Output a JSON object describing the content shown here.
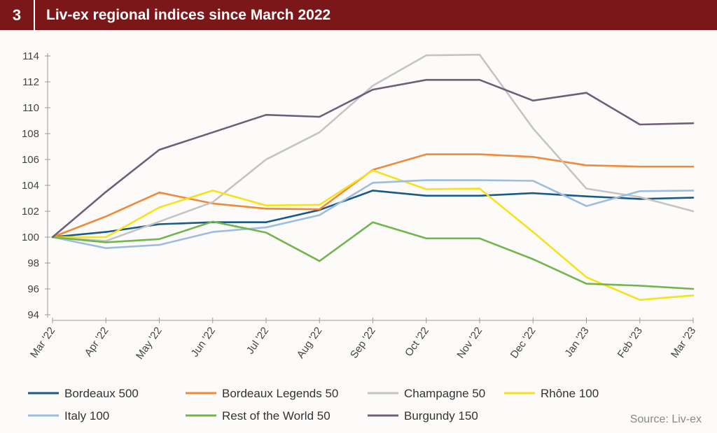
{
  "header": {
    "number": "3",
    "title": "Liv-ex regional indices since March 2022"
  },
  "source": "Source: Liv-ex",
  "chart_data": {
    "type": "line",
    "categories": [
      "Mar '22",
      "Apr '22",
      "May '22",
      "Jun '22",
      "Jul '22",
      "Aug '22",
      "Sep '22",
      "Oct '22",
      "Nov '22",
      "Dec '22",
      "Jan '23",
      "Feb '23",
      "Mar '23"
    ],
    "ylim": [
      94,
      114
    ],
    "yticks": [
      94,
      96,
      98,
      100,
      102,
      104,
      106,
      108,
      110,
      112,
      114
    ],
    "grid": false,
    "legend_position": "bottom",
    "series": [
      {
        "name": "Bordeaux 500",
        "color": "#1a5a87",
        "values": [
          100,
          100.4,
          101.0,
          101.15,
          101.15,
          102.1,
          103.6,
          103.2,
          103.2,
          103.4,
          103.15,
          102.95,
          103.05
        ]
      },
      {
        "name": "Bordeaux Legends 50",
        "color": "#ee8a3a",
        "values": [
          100,
          101.6,
          103.45,
          102.6,
          102.2,
          102.15,
          105.2,
          106.4,
          106.4,
          106.2,
          105.55,
          105.45,
          105.45
        ]
      },
      {
        "name": "Champagne 50",
        "color": "#c4c4c4",
        "values": [
          100,
          99.7,
          101.2,
          102.7,
          106.0,
          108.1,
          111.7,
          114.05,
          114.1,
          108.4,
          103.75,
          103.1,
          102.0
        ]
      },
      {
        "name": "Rhône 100",
        "color": "#f7e11a",
        "values": [
          100,
          100.0,
          102.3,
          103.6,
          102.45,
          102.5,
          105.15,
          103.7,
          103.75,
          100.4,
          96.9,
          95.15,
          95.5
        ]
      },
      {
        "name": "Italy 100",
        "color": "#9dbde0",
        "values": [
          100,
          99.15,
          99.4,
          100.4,
          100.75,
          101.7,
          104.2,
          104.4,
          104.4,
          104.35,
          102.4,
          103.55,
          103.6
        ]
      },
      {
        "name": "Rest of the World 50",
        "color": "#72b54e",
        "values": [
          100,
          99.6,
          99.85,
          101.2,
          100.35,
          98.15,
          101.15,
          99.9,
          99.9,
          98.3,
          96.4,
          96.25,
          96.0
        ]
      },
      {
        "name": "Burgundy 150",
        "color": "#6e5f78",
        "values": [
          100,
          103.5,
          106.75,
          108.1,
          109.45,
          109.3,
          111.4,
          112.15,
          112.15,
          110.55,
          111.15,
          108.7,
          108.8
        ]
      }
    ]
  }
}
